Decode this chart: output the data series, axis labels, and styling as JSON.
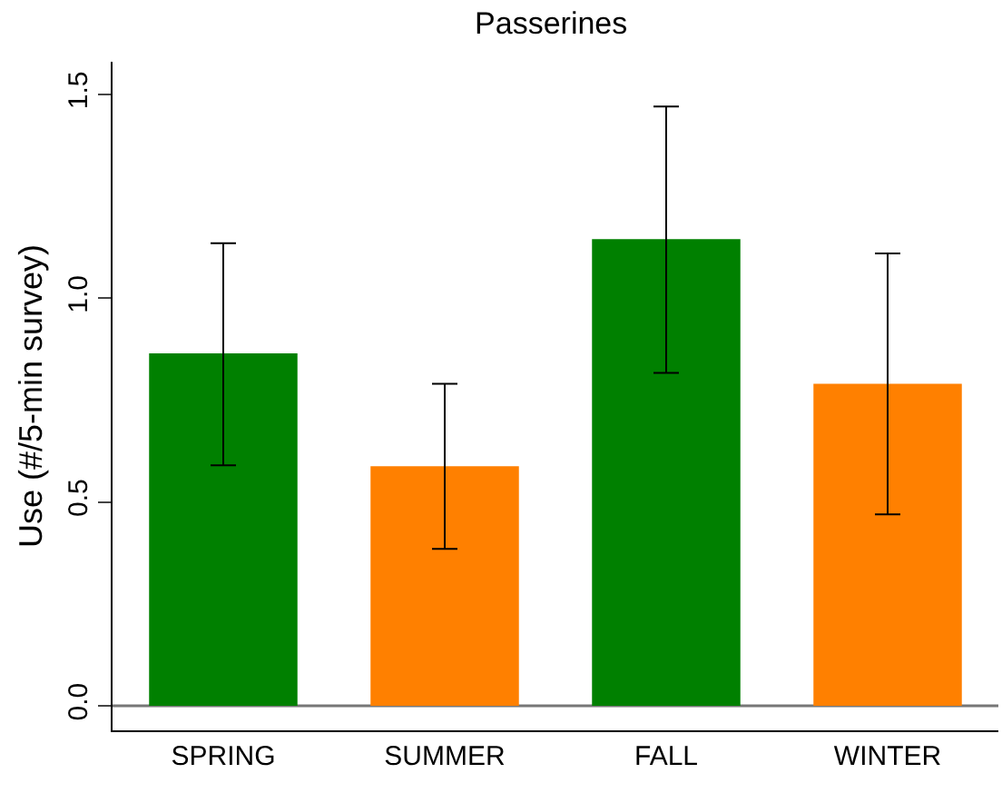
{
  "chart_data": {
    "type": "bar",
    "title": "Passerines",
    "ylabel": "Use (#/5-min survey)",
    "categories": [
      "SPRING",
      "SUMMER",
      "FALL",
      "WINTER"
    ],
    "values": [
      0.865,
      0.588,
      1.145,
      0.79
    ],
    "colors": [
      "#008000",
      "#ff8000",
      "#008000",
      "#ff8000"
    ],
    "errors": [
      [
        0.59,
        1.135
      ],
      [
        0.385,
        0.79
      ],
      [
        0.817,
        1.47
      ],
      [
        0.47,
        1.11
      ]
    ],
    "ylim": [
      -0.06,
      1.58
    ],
    "yticks": [
      {
        "value": 0,
        "label": "0.0"
      },
      0.5,
      {
        "value": 1,
        "label": "1.0"
      },
      1.5
    ],
    "ref_lines": [
      {
        "axis": "y",
        "value": 0,
        "color": "#777777"
      }
    ]
  }
}
